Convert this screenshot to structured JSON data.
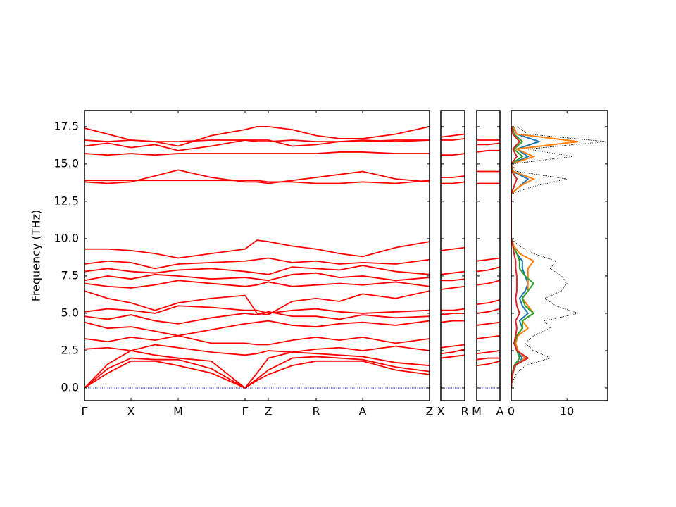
{
  "chart_data": [
    {
      "type": "line",
      "y_label": "Frequency (THz)",
      "color": "#ff0000",
      "x": [
        0,
        0.33,
        0.66,
        1.0,
        1.33,
        1.8,
        2.28,
        2.45,
        2.61,
        2.95,
        3.29,
        3.62,
        3.95,
        4.42,
        4.9
      ],
      "xlim": [
        0,
        4.9
      ],
      "xticks": [
        {
          "value": 0,
          "label": "Γ"
        },
        {
          "value": 0.66,
          "label": "X"
        },
        {
          "value": 1.33,
          "label": "M"
        },
        {
          "value": 2.28,
          "label": "Γ"
        },
        {
          "value": 2.61,
          "label": "Z"
        },
        {
          "value": 3.29,
          "label": "R"
        },
        {
          "value": 3.95,
          "label": "A"
        },
        {
          "value": 4.9,
          "label": "Z"
        }
      ],
      "ylim": [
        -0.85,
        18.58
      ],
      "yticks": [
        {
          "value": 0,
          "label": "0.0"
        },
        2.5,
        {
          "value": 5,
          "label": "5.0"
        },
        7.5,
        {
          "value": 10,
          "label": "10.0"
        },
        12.5,
        {
          "value": 15,
          "label": "15.0"
        },
        17.5
      ],
      "series": [
        {
          "values": [
            0,
            1.0,
            1.8,
            1.8,
            1.5,
            1.0,
            0,
            0.5,
            0.9,
            1.5,
            1.8,
            1.8,
            1.8,
            1.2,
            0.9
          ]
        },
        {
          "values": [
            0,
            1.3,
            2.0,
            1.9,
            1.9,
            1.3,
            0,
            0.6,
            1.2,
            2.0,
            2.1,
            2.0,
            1.9,
            1.4,
            1.1
          ]
        },
        {
          "values": [
            0,
            1.6,
            2.5,
            2.2,
            2.0,
            1.8,
            0,
            1.0,
            2.0,
            2.4,
            2.3,
            2.2,
            2.1,
            1.7,
            1.5
          ]
        },
        {
          "values": [
            2.6,
            2.7,
            2.5,
            2.9,
            2.7,
            2.4,
            2.2,
            2.3,
            2.5,
            2.4,
            2.6,
            2.7,
            2.5,
            2.8,
            2.5
          ]
        },
        {
          "values": [
            3.3,
            3.1,
            3.4,
            3.2,
            3.5,
            3.0,
            3.0,
            2.9,
            2.9,
            3.2,
            3.4,
            3.2,
            3.4,
            3.0,
            3.3
          ]
        },
        {
          "values": [
            4.4,
            4.0,
            4.1,
            3.8,
            3.5,
            3.9,
            4.3,
            4.4,
            4.5,
            4.2,
            4.1,
            4.3,
            4.4,
            4.2,
            4.5
          ]
        },
        {
          "values": [
            4.8,
            4.6,
            4.9,
            4.5,
            4.3,
            4.7,
            5.0,
            4.9,
            5.1,
            4.8,
            4.8,
            4.6,
            4.9,
            4.7,
            4.8
          ]
        },
        {
          "values": [
            5.1,
            5.3,
            5.2,
            5.0,
            5.5,
            5.4,
            5.2,
            5.2,
            5.0,
            5.2,
            5.3,
            5.1,
            5.0,
            5.1,
            5.2
          ]
        },
        {
          "values": [
            6.5,
            6.0,
            5.7,
            5.2,
            5.7,
            6.0,
            6.2,
            5.0,
            4.9,
            5.8,
            6.0,
            5.8,
            6.3,
            6.0,
            6.5
          ]
        },
        {
          "values": [
            7.0,
            6.8,
            6.7,
            6.9,
            7.2,
            7.0,
            6.8,
            6.9,
            7.1,
            6.8,
            6.9,
            7.0,
            6.9,
            7.1,
            6.8
          ]
        },
        {
          "values": [
            7.2,
            7.5,
            7.3,
            7.6,
            7.5,
            7.3,
            7.4,
            7.3,
            7.2,
            7.6,
            7.7,
            7.4,
            7.5,
            7.2,
            7.4
          ]
        },
        {
          "values": [
            7.8,
            8.0,
            7.8,
            7.7,
            7.9,
            8.0,
            7.8,
            7.7,
            7.6,
            8.1,
            8.0,
            7.9,
            8.2,
            7.8,
            7.6
          ]
        },
        {
          "values": [
            8.3,
            8.5,
            8.4,
            8.0,
            8.3,
            8.4,
            8.5,
            8.6,
            8.7,
            8.4,
            8.5,
            8.3,
            8.4,
            8.3,
            8.6
          ]
        },
        {
          "values": [
            9.3,
            9.3,
            9.2,
            9.0,
            8.7,
            9.0,
            9.3,
            9.9,
            9.8,
            9.5,
            9.3,
            9.0,
            8.8,
            9.4,
            9.8
          ]
        },
        {
          "values": [
            13.8,
            13.7,
            13.8,
            14.2,
            14.6,
            14.1,
            13.8,
            13.8,
            13.7,
            13.9,
            14.1,
            14.3,
            14.5,
            14.0,
            13.8
          ]
        },
        {
          "values": [
            13.9,
            13.9,
            13.9,
            13.9,
            13.9,
            13.9,
            13.9,
            13.9,
            13.8,
            13.8,
            13.7,
            13.7,
            13.8,
            13.7,
            13.9
          ]
        },
        {
          "values": [
            15.7,
            15.6,
            15.7,
            15.6,
            15.7,
            15.7,
            15.7,
            15.7,
            15.7,
            15.7,
            15.7,
            15.8,
            15.8,
            15.7,
            15.7
          ]
        },
        {
          "values": [
            16.2,
            16.4,
            16.1,
            16.3,
            15.9,
            16.2,
            16.6,
            16.6,
            16.6,
            16.2,
            16.3,
            16.5,
            16.5,
            16.6,
            16.6
          ]
        },
        {
          "values": [
            16.6,
            16.5,
            16.6,
            16.5,
            16.5,
            16.6,
            16.6,
            16.5,
            16.5,
            16.6,
            16.5,
            16.5,
            16.6,
            16.5,
            16.6
          ]
        },
        {
          "values": [
            17.4,
            17.0,
            16.6,
            16.5,
            16.2,
            16.9,
            17.3,
            17.5,
            17.5,
            17.3,
            16.9,
            16.7,
            16.7,
            17.0,
            17.5
          ]
        },
        {
          "color": "#0000cc",
          "style": "dotted",
          "values": [
            0,
            0,
            0,
            0,
            0,
            0,
            0,
            0,
            0,
            0,
            0,
            0,
            0,
            0,
            0
          ]
        }
      ]
    },
    {
      "type": "line",
      "color": "#ff0000",
      "x": [
        0,
        0.5,
        1
      ],
      "xlim": [
        0,
        1
      ],
      "xticks": [
        {
          "value": 0,
          "label": "X"
        },
        {
          "value": 1,
          "label": "R"
        }
      ],
      "ylim": [
        -0.85,
        18.58
      ],
      "series": [
        {
          "values": [
            2.0,
            2.1,
            2.2
          ]
        },
        {
          "values": [
            2.3,
            2.4,
            2.6
          ]
        },
        {
          "values": [
            2.7,
            2.8,
            2.9
          ]
        },
        {
          "values": [
            4.4,
            4.5,
            4.5
          ]
        },
        {
          "values": [
            4.9,
            5.0,
            5.0
          ]
        },
        {
          "values": [
            5.2,
            5.2,
            5.3
          ]
        },
        {
          "values": [
            6.6,
            6.7,
            6.8
          ]
        },
        {
          "values": [
            7.2,
            7.2,
            7.3
          ]
        },
        {
          "values": [
            7.6,
            7.7,
            7.8
          ]
        },
        {
          "values": [
            9.2,
            9.3,
            9.4
          ]
        },
        {
          "values": [
            13.7,
            13.7,
            13.8
          ]
        },
        {
          "values": [
            14.1,
            14.1,
            14.2
          ]
        },
        {
          "values": [
            15.6,
            15.6,
            15.7
          ]
        },
        {
          "values": [
            16.6,
            16.6,
            16.7
          ]
        },
        {
          "values": [
            16.8,
            16.9,
            17.0
          ]
        },
        {
          "color": "#0000cc",
          "style": "dotted",
          "values": [
            0,
            0,
            0
          ]
        }
      ]
    },
    {
      "type": "line",
      "color": "#ff0000",
      "x": [
        0,
        0.5,
        1
      ],
      "xlim": [
        0,
        1
      ],
      "xticks": [
        {
          "value": 0,
          "label": "M"
        },
        {
          "value": 1,
          "label": "A"
        }
      ],
      "ylim": [
        -0.85,
        18.58
      ],
      "series": [
        {
          "values": [
            1.5,
            1.6,
            1.8
          ]
        },
        {
          "values": [
            1.9,
            2.0,
            2.0
          ]
        },
        {
          "values": [
            2.3,
            2.4,
            2.5
          ]
        },
        {
          "values": [
            3.3,
            3.4,
            3.5
          ]
        },
        {
          "values": [
            4.2,
            4.3,
            4.4
          ]
        },
        {
          "values": [
            5.0,
            5.1,
            5.3
          ]
        },
        {
          "values": [
            5.6,
            5.7,
            5.9
          ]
        },
        {
          "values": [
            6.9,
            7.0,
            7.2
          ]
        },
        {
          "values": [
            7.8,
            7.9,
            8.1
          ]
        },
        {
          "values": [
            8.5,
            8.6,
            8.7
          ]
        },
        {
          "values": [
            13.7,
            13.7,
            13.7
          ]
        },
        {
          "values": [
            14.5,
            14.5,
            14.5
          ]
        },
        {
          "values": [
            15.8,
            15.9,
            15.9
          ]
        },
        {
          "values": [
            16.3,
            16.3,
            16.4
          ]
        },
        {
          "values": [
            16.6,
            16.6,
            16.6
          ]
        },
        {
          "color": "#0000cc",
          "style": "dotted",
          "values": [
            0,
            0,
            0
          ]
        }
      ]
    },
    {
      "type": "dos",
      "xlim": [
        0,
        17.3
      ],
      "xticks": [
        0,
        10
      ],
      "ylim": [
        -0.85,
        18.58
      ],
      "y": [
        0,
        0.5,
        1,
        1.5,
        2,
        2.5,
        3,
        3.5,
        4,
        4.5,
        5,
        5.5,
        6,
        6.5,
        7,
        7.5,
        8,
        8.5,
        9,
        9.5,
        10,
        10.5,
        11,
        11.5,
        12,
        12.5,
        13,
        13.5,
        14,
        14.5,
        15,
        15.5,
        16,
        16.5,
        17,
        17.5
      ],
      "series": [
        {
          "color": "#000000",
          "style": "dotted",
          "values": [
            0,
            0.3,
            1.0,
            2.5,
            7,
            4,
            2.5,
            4,
            7,
            6,
            12,
            8,
            6,
            9,
            10,
            9,
            7,
            8,
            4,
            1.5,
            0,
            0,
            0,
            0,
            0,
            0,
            0,
            4,
            10,
            1,
            0,
            11,
            3,
            17,
            3,
            1
          ]
        },
        {
          "color": "#1f77b4",
          "values": [
            0,
            0.1,
            0.3,
            0.8,
            2,
            1,
            0.8,
            1,
            2,
            1.5,
            3,
            2,
            1.5,
            2.5,
            3,
            2.5,
            2,
            2,
            1,
            0.4,
            0,
            0,
            0,
            0,
            0,
            0,
            0,
            1.5,
            3,
            0.3,
            0,
            3,
            1,
            5,
            1,
            0.3
          ]
        },
        {
          "color": "#ff7f0e",
          "values": [
            0,
            0.1,
            0.3,
            0.7,
            2.5,
            1.2,
            0.8,
            1.2,
            3,
            2,
            4,
            3,
            2,
            3,
            3,
            3,
            3,
            4,
            1.5,
            0.5,
            0,
            0,
            0,
            0,
            0,
            0,
            0,
            1.5,
            4,
            0.4,
            0,
            4,
            1,
            12,
            1,
            0.4
          ]
        },
        {
          "color": "#2ca02c",
          "values": [
            0,
            0.1,
            0.2,
            0.5,
            1.5,
            1,
            0.6,
            1,
            2,
            2,
            4,
            2.5,
            2,
            3,
            4,
            2.5,
            1.5,
            1.5,
            1,
            0.3,
            0,
            0,
            0,
            0,
            0,
            0,
            0,
            0.5,
            1,
            0.2,
            0,
            2,
            0.5,
            2,
            0.5,
            0.2
          ]
        },
        {
          "color": "#d62728",
          "values": [
            0,
            0.1,
            0.3,
            0.6,
            3,
            1,
            0.5,
            0.8,
            1,
            0.8,
            1.5,
            1,
            0.8,
            1,
            1,
            1,
            0.8,
            0.8,
            0.5,
            0.3,
            0,
            0,
            0,
            0,
            0,
            0,
            0,
            0.5,
            1,
            0.1,
            0,
            1,
            0.3,
            1.5,
            0.3,
            0.1
          ]
        }
      ]
    }
  ]
}
